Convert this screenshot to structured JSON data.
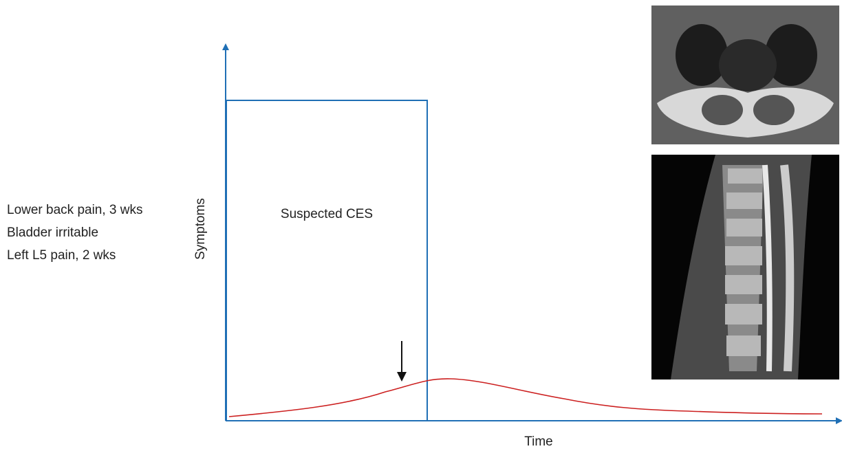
{
  "symptoms": [
    "Lower back pain, 3 wks",
    "Bladder irritable",
    "Left L5 pain, 2 wks"
  ],
  "y_axis_label": "Symptoms",
  "x_axis_label": "Time",
  "box_label": "Suspected CES"
}
